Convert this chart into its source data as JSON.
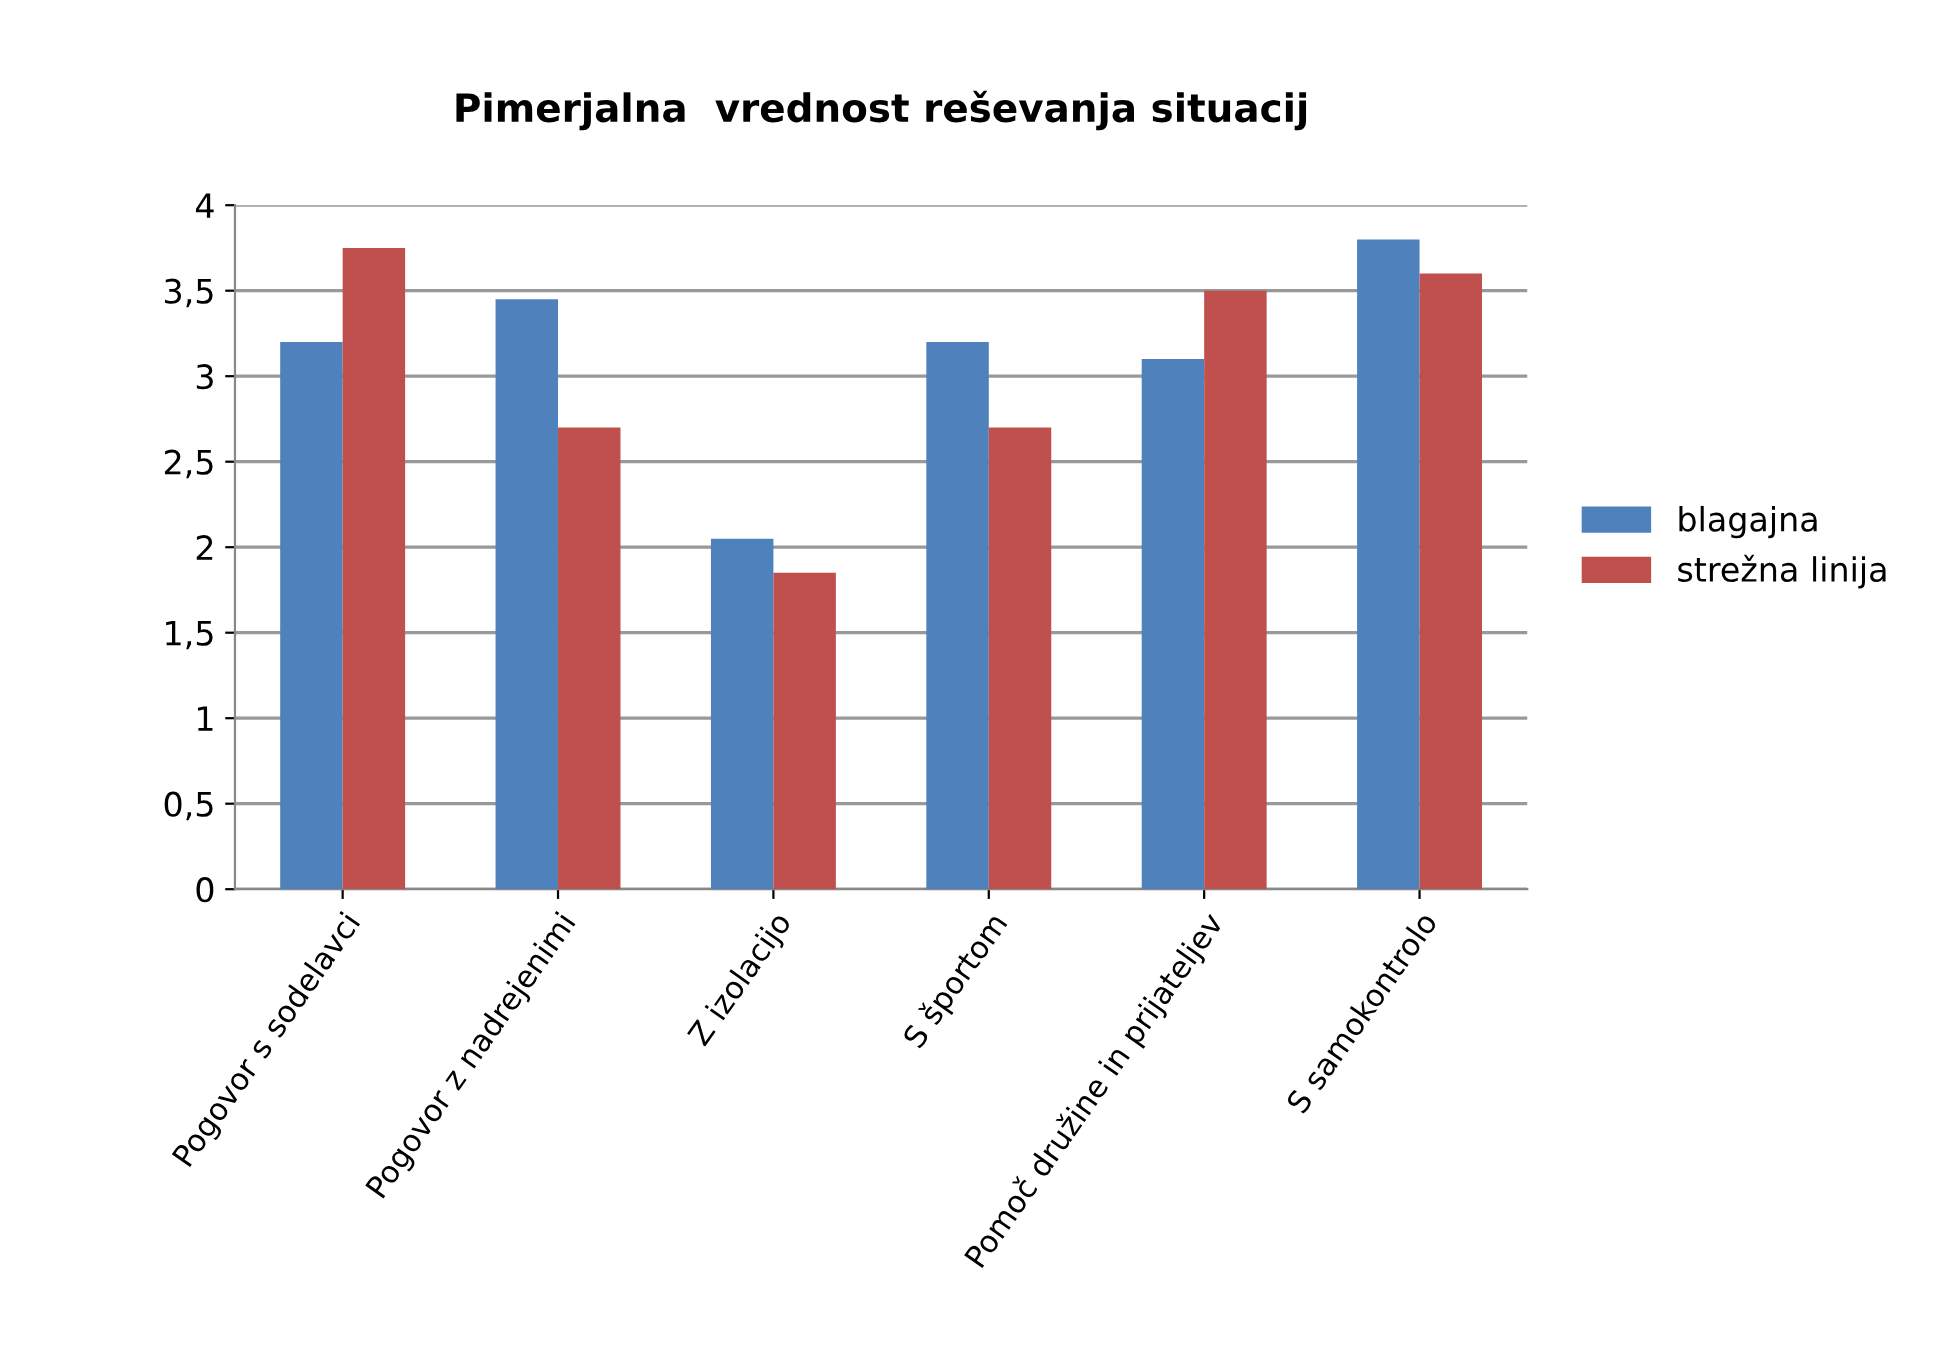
{
  "chart_data": {
    "type": "bar",
    "title": "Pimerjalna  vrednost reševanja situacij",
    "categories": [
      "Pogovor s sodelavci",
      "Pogovor z nadrejenimi",
      "Z izolacijo",
      "S športom",
      "Pomoč družine in prijateljev",
      "S samokontrolo"
    ],
    "series": [
      {
        "name": "blagajna",
        "color": "#4f81bd",
        "values": [
          3.2,
          3.45,
          2.05,
          3.2,
          3.1,
          3.8
        ]
      },
      {
        "name": "strežna linija",
        "color": "#c0504d",
        "values": [
          3.75,
          2.7,
          1.85,
          2.7,
          3.5,
          3.6
        ]
      }
    ],
    "ylim": [
      0,
      4
    ],
    "yticks": [
      {
        "value": 0,
        "label": "0"
      },
      {
        "value": 0.5,
        "label": "0,5"
      },
      {
        "value": 1,
        "label": "1"
      },
      {
        "value": 1.5,
        "label": "1,5"
      },
      {
        "value": 2,
        "label": "2"
      },
      {
        "value": 2.5,
        "label": "2,5"
      },
      {
        "value": 3,
        "label": "3"
      },
      {
        "value": 3.5,
        "label": "3,5"
      },
      {
        "value": 4,
        "label": "4"
      }
    ],
    "grid": "y",
    "legend": "right"
  }
}
